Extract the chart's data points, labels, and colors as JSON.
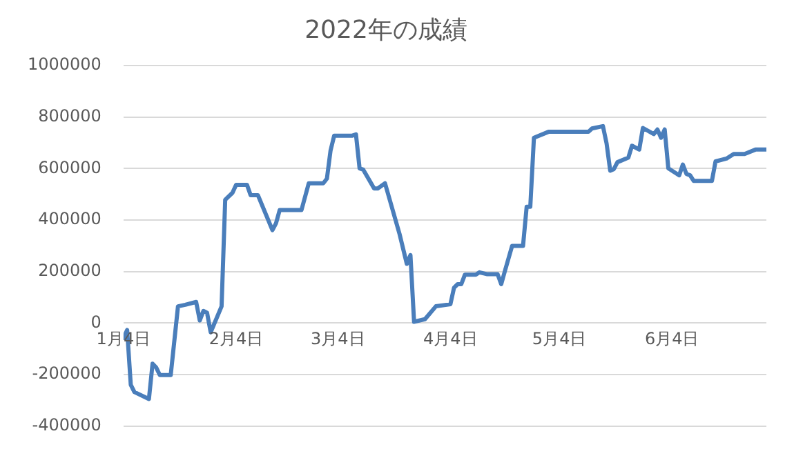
{
  "chart_data": {
    "type": "line",
    "title": "2022年の成績",
    "x": [
      "--01-04",
      "--01-05",
      "--01-06",
      "--01-07",
      "--01-11",
      "--01-12",
      "--01-13",
      "--01-14",
      "--01-17",
      "--01-19",
      "--01-21",
      "--01-24",
      "--01-25",
      "--01-26",
      "--01-27",
      "--01-28",
      "--01-31",
      "--02-01",
      "--02-03",
      "--02-04",
      "--02-07",
      "--02-08",
      "--02-10",
      "--02-14",
      "--02-15",
      "--02-16",
      "--02-22",
      "--02-24",
      "--02-28",
      "--03-01",
      "--03-02",
      "--03-03",
      "--03-08",
      "--03-09",
      "--03-10",
      "--03-11",
      "--03-14",
      "--03-15",
      "--03-17",
      "--03-21",
      "--03-23",
      "--03-24",
      "--03-25",
      "--03-28",
      "--03-31",
      "--04-04",
      "--04-05",
      "--04-06",
      "--04-07",
      "--04-08",
      "--04-11",
      "--04-12",
      "--04-14",
      "--04-17",
      "--04-18",
      "--04-19",
      "--04-21",
      "--04-24",
      "--04-25",
      "--04-26",
      "--04-27",
      "--05-01",
      "--05-12",
      "--05-13",
      "--05-16",
      "--05-17",
      "--05-18",
      "--05-19",
      "--05-20",
      "--05-23",
      "--05-24",
      "--05-26",
      "--05-27",
      "--05-30",
      "--05-31",
      "--06-01",
      "--06-02",
      "--06-03",
      "--06-06",
      "--06-07",
      "--06-08",
      "--06-09",
      "--06-10",
      "--06-15",
      "--06-16",
      "--06-19",
      "--06-21",
      "--06-24",
      "--06-27",
      "--06-30"
    ],
    "series": [
      {
        "color": "#4a7ebb",
        "values": [
          -58000,
          -27000,
          -240000,
          -268000,
          -295000,
          -158000,
          -173000,
          -202000,
          -202000,
          65000,
          71000,
          82000,
          10000,
          47000,
          40000,
          -36000,
          65000,
          479000,
          506000,
          537000,
          537000,
          497000,
          497000,
          361000,
          388000,
          439000,
          439000,
          543000,
          543000,
          561000,
          670000,
          728000,
          728000,
          733000,
          601000,
          596000,
          523000,
          523000,
          543000,
          346000,
          230000,
          264000,
          5000,
          15000,
          65000,
          73000,
          137000,
          151000,
          151000,
          188000,
          188000,
          197000,
          190000,
          190000,
          151000,
          202000,
          300000,
          300000,
          452000,
          452000,
          720000,
          743000,
          743000,
          756000,
          765000,
          698000,
          592000,
          598000,
          625000,
          643000,
          689000,
          674000,
          758000,
          734000,
          752000,
          720000,
          752000,
          601000,
          574000,
          616000,
          579000,
          574000,
          552000,
          552000,
          628000,
          639000,
          657000,
          657000,
          674000,
          674000
        ]
      }
    ],
    "xlim": [
      "--01-04",
      "--06-30"
    ],
    "xticks": [
      {
        "value": "--01-04",
        "label": "1月4日"
      },
      {
        "value": "--02-04",
        "label": "2月4日"
      },
      {
        "value": "--03-04",
        "label": "3月4日"
      },
      {
        "value": "--04-04",
        "label": "4月4日"
      },
      {
        "value": "--05-04",
        "label": "5月4日"
      },
      {
        "value": "--06-04",
        "label": "6月4日"
      }
    ],
    "ylim": [
      -400000,
      1000000
    ],
    "yticks": [
      -400000,
      -200000,
      0,
      200000,
      400000,
      600000,
      800000,
      1000000
    ],
    "grid": "y",
    "legend": false,
    "marker": "none",
    "line_style": "solid"
  }
}
